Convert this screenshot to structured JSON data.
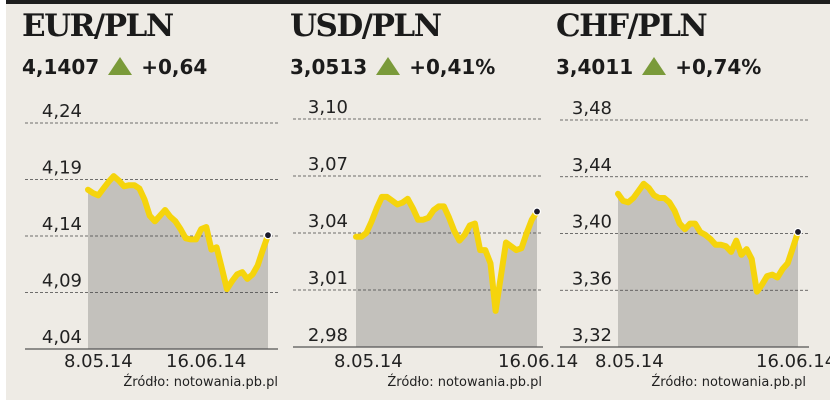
{
  "panels": [
    {
      "title": "EUR/PLN",
      "value": "4,1407",
      "change": "+0,64",
      "direction": "up"
    },
    {
      "title": "USD/PLN",
      "value": "3,0513",
      "change": "+0,41%",
      "direction": "up"
    },
    {
      "title": "CHF/PLN",
      "value": "3,4011",
      "change": "+0,74%",
      "direction": "up"
    }
  ],
  "colors": {
    "line": "#f5d40c",
    "area": "#c3c1bc",
    "up_triangle": "#7a9a3a",
    "background": "#eeebe5",
    "end_dot": "#1a1a2a"
  },
  "chart_data": [
    {
      "type": "area",
      "title": "EUR/PLN",
      "x_tick_labels": [
        "8.05.14",
        "16.06.14"
      ],
      "y_tick_labels": [
        "4,24",
        "4,19",
        "4,14",
        "4,09",
        "4,04"
      ],
      "y_ticks": [
        4.24,
        4.19,
        4.14,
        4.09,
        4.04
      ],
      "ylim": [
        4.04,
        4.24
      ],
      "grid": true,
      "source": "Źródło: notowania.pb.pl",
      "x": [
        "8.05.14",
        "9.05.14",
        "12.05.14",
        "13.05.14",
        "14.05.14",
        "15.05.14",
        "16.05.14",
        "19.05.14",
        "20.05.14",
        "21.05.14",
        "22.05.14",
        "23.05.14",
        "26.05.14",
        "27.05.14",
        "28.05.14",
        "29.05.14",
        "30.05.14",
        "2.06.14",
        "3.06.14",
        "4.06.14",
        "5.06.14",
        "6.06.14",
        "9.06.14",
        "10.06.14",
        "11.06.14",
        "12.06.14",
        "13.06.14",
        "16.06.14",
        "17.06.14",
        "18.06.14",
        "19.06.14",
        "20.06.14",
        "23.06.14",
        "24.06.14",
        "25.06.14",
        "26.06.14"
      ],
      "values": [
        4.181,
        4.178,
        4.176,
        4.182,
        4.188,
        4.193,
        4.189,
        4.184,
        4.185,
        4.185,
        4.182,
        4.172,
        4.158,
        4.153,
        4.158,
        4.163,
        4.157,
        4.153,
        4.146,
        4.138,
        4.137,
        4.137,
        4.146,
        4.148,
        4.128,
        4.13,
        4.112,
        4.093,
        4.1,
        4.106,
        4.108,
        4.102,
        4.106,
        4.114,
        4.128,
        4.1407
      ]
    },
    {
      "type": "area",
      "title": "USD/PLN",
      "x_tick_labels": [
        "8.05.14",
        "16.06.14"
      ],
      "y_tick_labels": [
        "3,10",
        "3,07",
        "3,04",
        "3,01",
        "2,98"
      ],
      "y_ticks": [
        3.1,
        3.07,
        3.04,
        3.01,
        2.98
      ],
      "ylim": [
        2.98,
        3.1
      ],
      "grid": true,
      "source": "Źródło: notowania.pb.pl",
      "x": [
        "8.05.14",
        "9.05.14",
        "12.05.14",
        "13.05.14",
        "14.05.14",
        "15.05.14",
        "16.05.14",
        "19.05.14",
        "20.05.14",
        "21.05.14",
        "22.05.14",
        "23.05.14",
        "26.05.14",
        "27.05.14",
        "28.05.14",
        "29.05.14",
        "30.05.14",
        "2.06.14",
        "3.06.14",
        "4.06.14",
        "5.06.14",
        "6.06.14",
        "9.06.14",
        "10.06.14",
        "11.06.14",
        "12.06.14",
        "13.06.14",
        "16.06.14",
        "17.06.14",
        "18.06.14",
        "19.06.14",
        "20.06.14",
        "23.06.14",
        "24.06.14",
        "25.06.14",
        "26.06.14"
      ],
      "values": [
        3.038,
        3.038,
        3.04,
        3.046,
        3.053,
        3.059,
        3.059,
        3.057,
        3.055,
        3.056,
        3.058,
        3.053,
        3.047,
        3.047,
        3.048,
        3.052,
        3.054,
        3.054,
        3.048,
        3.041,
        3.036,
        3.039,
        3.044,
        3.045,
        3.031,
        3.031,
        3.024,
        2.999,
        3.017,
        3.035,
        3.033,
        3.031,
        3.032,
        3.04,
        3.047,
        3.0513
      ]
    },
    {
      "type": "area",
      "title": "CHF/PLN",
      "x_tick_labels": [
        "8.05.14",
        "16.06.14"
      ],
      "y_tick_labels": [
        "3,48",
        "3,44",
        "3,40",
        "3,36",
        "3,32"
      ],
      "y_ticks": [
        3.48,
        3.44,
        3.4,
        3.36,
        3.32
      ],
      "ylim": [
        3.32,
        3.48
      ],
      "grid": true,
      "source": "Źródło: notowania.pb.pl",
      "x": [
        "8.05.14",
        "9.05.14",
        "12.05.14",
        "13.05.14",
        "14.05.14",
        "15.05.14",
        "16.05.14",
        "19.05.14",
        "20.05.14",
        "21.05.14",
        "22.05.14",
        "23.05.14",
        "26.05.14",
        "27.05.14",
        "28.05.14",
        "29.05.14",
        "30.05.14",
        "2.06.14",
        "3.06.14",
        "4.06.14",
        "5.06.14",
        "6.06.14",
        "9.06.14",
        "10.06.14",
        "11.06.14",
        "12.06.14",
        "13.06.14",
        "16.06.14",
        "17.06.14",
        "18.06.14",
        "19.06.14",
        "20.06.14",
        "23.06.14",
        "24.06.14",
        "25.06.14",
        "26.06.14"
      ],
      "values": [
        3.428,
        3.423,
        3.422,
        3.425,
        3.43,
        3.435,
        3.432,
        3.427,
        3.425,
        3.425,
        3.422,
        3.416,
        3.407,
        3.403,
        3.407,
        3.407,
        3.401,
        3.399,
        3.396,
        3.392,
        3.392,
        3.391,
        3.387,
        3.395,
        3.385,
        3.389,
        3.382,
        3.359,
        3.364,
        3.37,
        3.371,
        3.369,
        3.375,
        3.379,
        3.39,
        3.4011
      ]
    }
  ]
}
